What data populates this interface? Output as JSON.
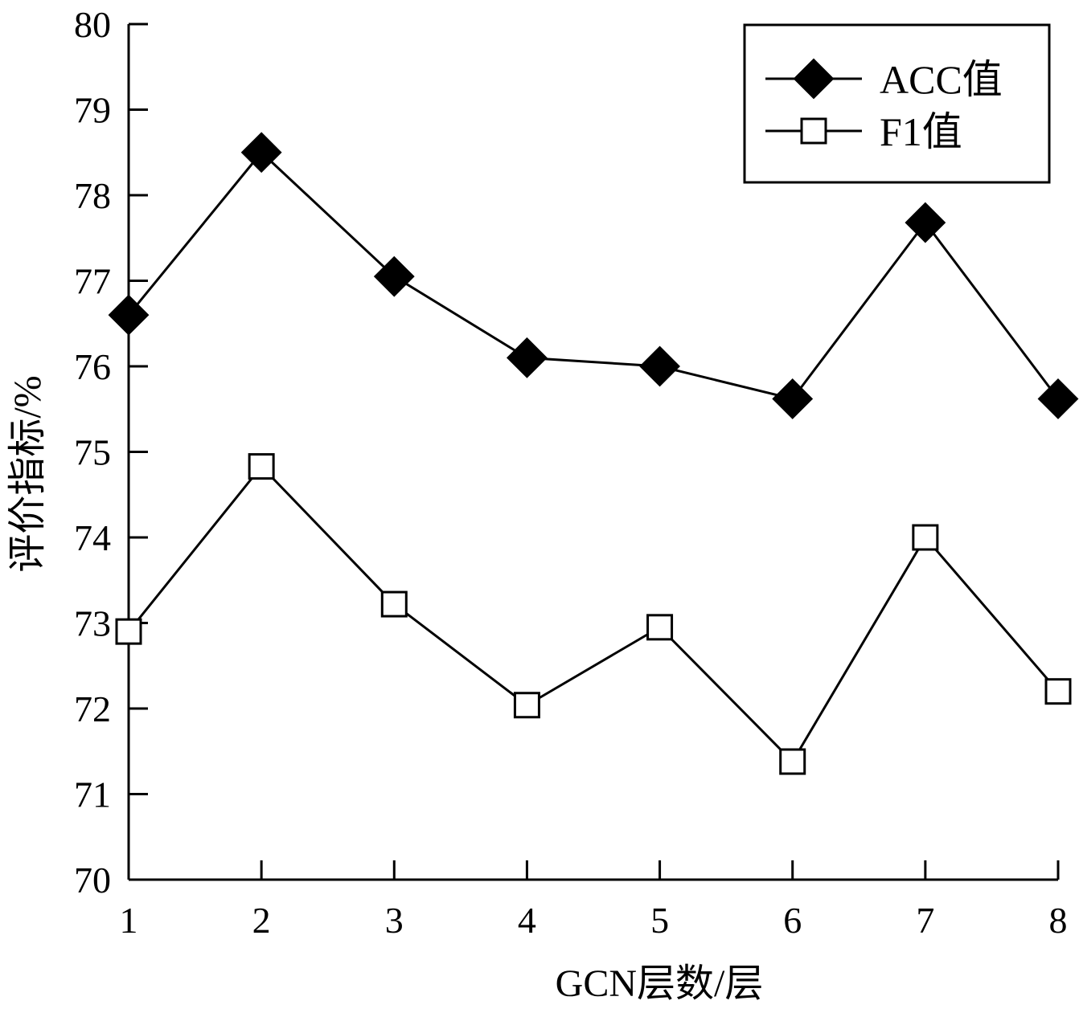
{
  "chart_data": {
    "type": "line",
    "title": "",
    "xlabel": "GCN层数/层",
    "ylabel": "评价指标/%",
    "x": [
      1,
      2,
      3,
      4,
      5,
      6,
      7,
      8
    ],
    "xlim": [
      1,
      8
    ],
    "ylim": [
      70,
      80
    ],
    "yticks": [
      70,
      71,
      72,
      73,
      74,
      75,
      76,
      77,
      78,
      79,
      80
    ],
    "grid": false,
    "legend_position": "top-right",
    "series": [
      {
        "name": "ACC值",
        "marker": "filled-diamond",
        "color": "#000000",
        "values": [
          76.6,
          78.5,
          77.05,
          76.1,
          76.0,
          75.62,
          77.68,
          75.62
        ]
      },
      {
        "name": "F1值",
        "marker": "open-square",
        "color": "#000000",
        "values": [
          72.9,
          74.83,
          73.22,
          72.04,
          72.95,
          71.38,
          74.0,
          72.2
        ]
      }
    ]
  }
}
